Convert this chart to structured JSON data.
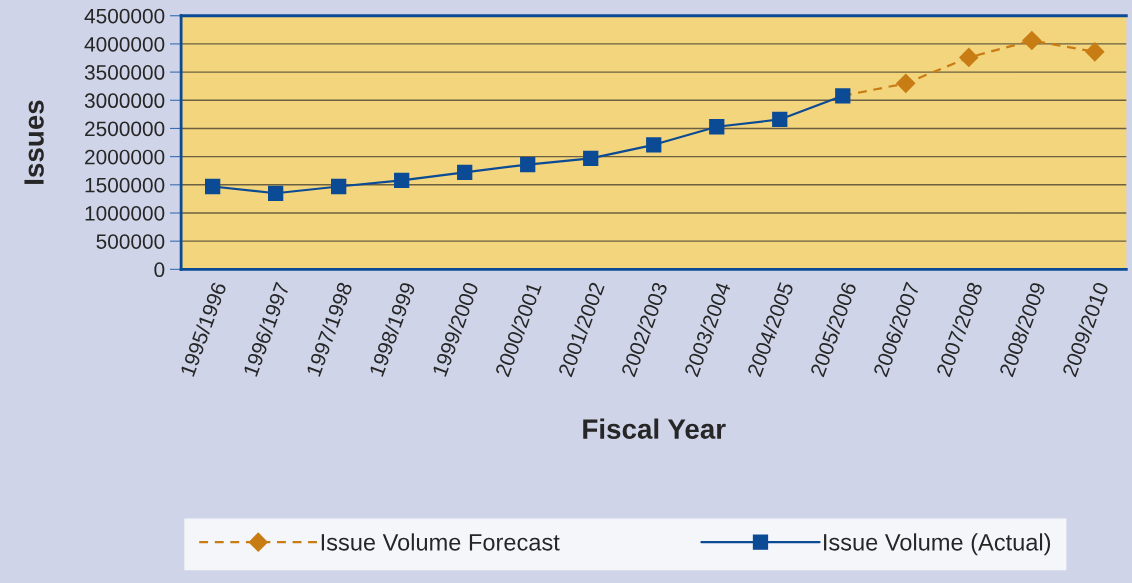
{
  "chart_data": {
    "type": "line",
    "xlabel": "Fiscal Year",
    "ylabel": "Issues",
    "categories": [
      "1995/1996",
      "1996/1997",
      "1997/1998",
      "1998/1999",
      "1999/2000",
      "2000/2001",
      "2001/2002",
      "2002/2003",
      "2003/2004",
      "2004/2005",
      "2005/2006",
      "2006/2007",
      "2007/2008",
      "2008/2009",
      "2009/2010"
    ],
    "series": [
      {
        "name": "Issue Volume Forecast",
        "color": "#c87d14",
        "marker": "diamond",
        "line_style": "dashed",
        "values": [
          null,
          null,
          null,
          null,
          null,
          null,
          null,
          null,
          null,
          null,
          3080000,
          3300000,
          3760000,
          4060000,
          3860000
        ]
      },
      {
        "name": "Issue Volume (Actual)",
        "color": "#0b4a94",
        "marker": "square",
        "line_style": "solid",
        "values": [
          1470000,
          1350000,
          1470000,
          1580000,
          1720000,
          1860000,
          1970000,
          2210000,
          2530000,
          2660000,
          3080000,
          null,
          null,
          null,
          null
        ]
      }
    ],
    "ylim": [
      0,
      4500000
    ],
    "yticks": [
      0,
      500000,
      1000000,
      1500000,
      2000000,
      2500000,
      3000000,
      3500000,
      4000000,
      4500000
    ],
    "grid": "y",
    "legend": "bottom"
  }
}
